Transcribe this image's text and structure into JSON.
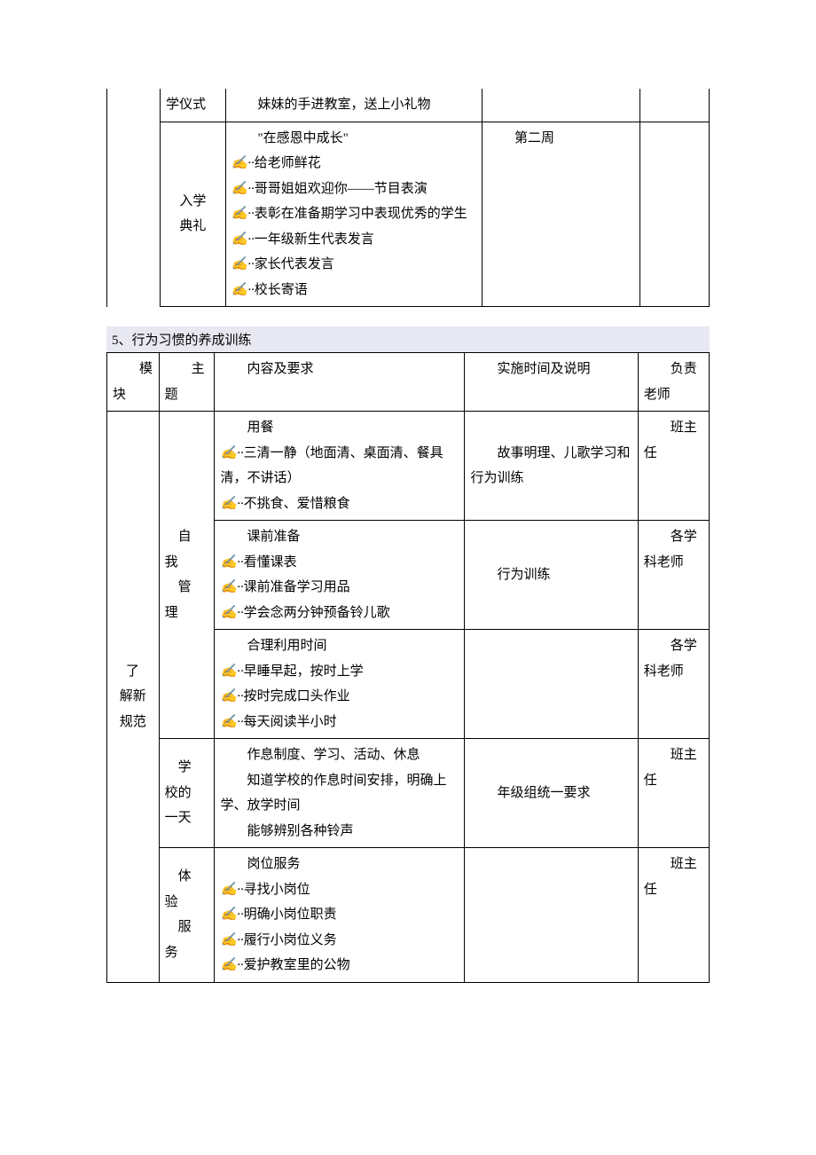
{
  "bullet_marker": "✍··",
  "table1": {
    "rows": [
      {
        "topic": "学仪式",
        "content": {
          "lead": "妹妹的手进教室，送上小礼物",
          "bullets": []
        },
        "time": "",
        "resp": ""
      },
      {
        "topic": "入学典礼",
        "content": {
          "lead": "\"在感恩中成长\"",
          "bullets": [
            "给老师鲜花",
            "哥哥姐姐欢迎你——节目表演",
            "表彰在准备期学习中表现优秀的学生",
            "一年级新生代表发言",
            "家长代表发言",
            "校长寄语"
          ]
        },
        "time": "第二周",
        "resp": ""
      }
    ]
  },
  "section_title": "5、行为习惯的养成训练",
  "table2": {
    "headers": {
      "module": "模块",
      "topic": "主题",
      "content": "内容及要求",
      "time": "实施时间及说明",
      "resp": "负责老师"
    },
    "module": "了解新规范",
    "groups": [
      {
        "topic": "自我管理",
        "rows": [
          {
            "content": {
              "lead": "用餐",
              "bullets": [
                "三清一静（地面清、桌面清、餐具清，不讲话）",
                "不挑食、爱惜粮食"
              ]
            },
            "time": "故事明理、儿歌学习和行为训练",
            "resp": "班主任"
          },
          {
            "content": {
              "lead": "课前准备",
              "bullets": [
                "看懂课表",
                "课前准备学习用品",
                "学会念两分钟预备铃儿歌"
              ]
            },
            "time": "行为训练",
            "resp": "各学科老师"
          },
          {
            "content": {
              "lead": "合理利用时间",
              "bullets": [
                "早睡早起，按时上学",
                "按时完成口头作业",
                "每天阅读半小时"
              ]
            },
            "time": "",
            "resp": "各学科老师"
          }
        ]
      },
      {
        "topic": "学校的一天",
        "rows": [
          {
            "content": {
              "lead_lines": [
                "作息制度、学习、活动、休息",
                "知道学校的作息时间安排，明确上学、放学时间",
                "能够辨别各种铃声"
              ],
              "bullets": []
            },
            "time": "年级组统一要求",
            "resp": "班主任"
          }
        ]
      },
      {
        "topic": "体验服务",
        "rows": [
          {
            "content": {
              "lead": "岗位服务",
              "bullets": [
                "寻找小岗位",
                "明确小岗位职责",
                "履行小岗位义务",
                "爱护教室里的公物"
              ]
            },
            "time": "",
            "resp": "班主任"
          }
        ]
      }
    ]
  }
}
